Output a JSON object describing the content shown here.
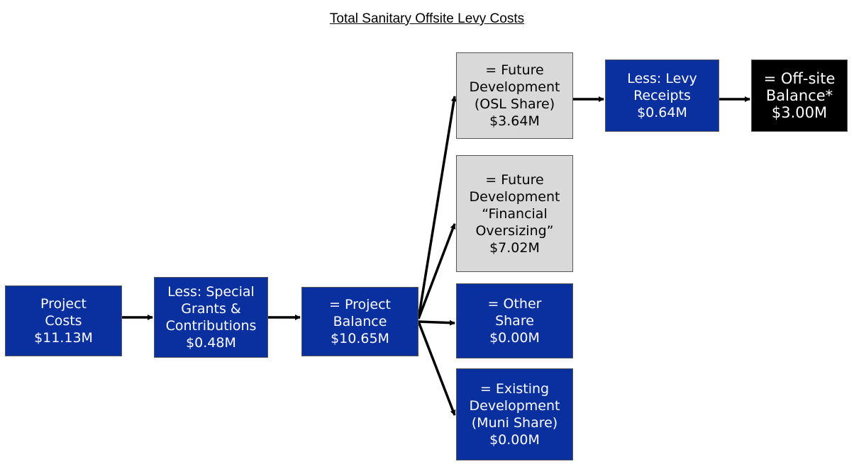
{
  "title": "Total Sanitary Offsite Levy Costs",
  "nodes": [
    {
      "lines": [
        "Project",
        "Costs"
      ],
      "value": "$11.13M"
    },
    {
      "lines": [
        "Less: Special",
        "Grants &",
        "Contributions"
      ],
      "value": "$0.48M"
    },
    {
      "lines": [
        "= Project",
        "Balance"
      ],
      "value": "$10.65M"
    },
    {
      "lines": [
        "= Future",
        "Development",
        "(OSL Share)"
      ],
      "value": "$3.64M"
    },
    {
      "lines": [
        "= Future",
        "Development",
        "“Financial",
        "Oversizing”"
      ],
      "value": "$7.02M"
    },
    {
      "lines": [
        "= Other",
        "Share"
      ],
      "value": "$0.00M"
    },
    {
      "lines": [
        "= Existing",
        "Development",
        "(Muni Share)"
      ],
      "value": "$0.00M"
    },
    {
      "lines": [
        "Less: Levy",
        "Receipts"
      ],
      "value": "$0.64M"
    },
    {
      "lines": [
        "= Off-site",
        "Balance*"
      ],
      "value": "$3.00M"
    }
  ]
}
